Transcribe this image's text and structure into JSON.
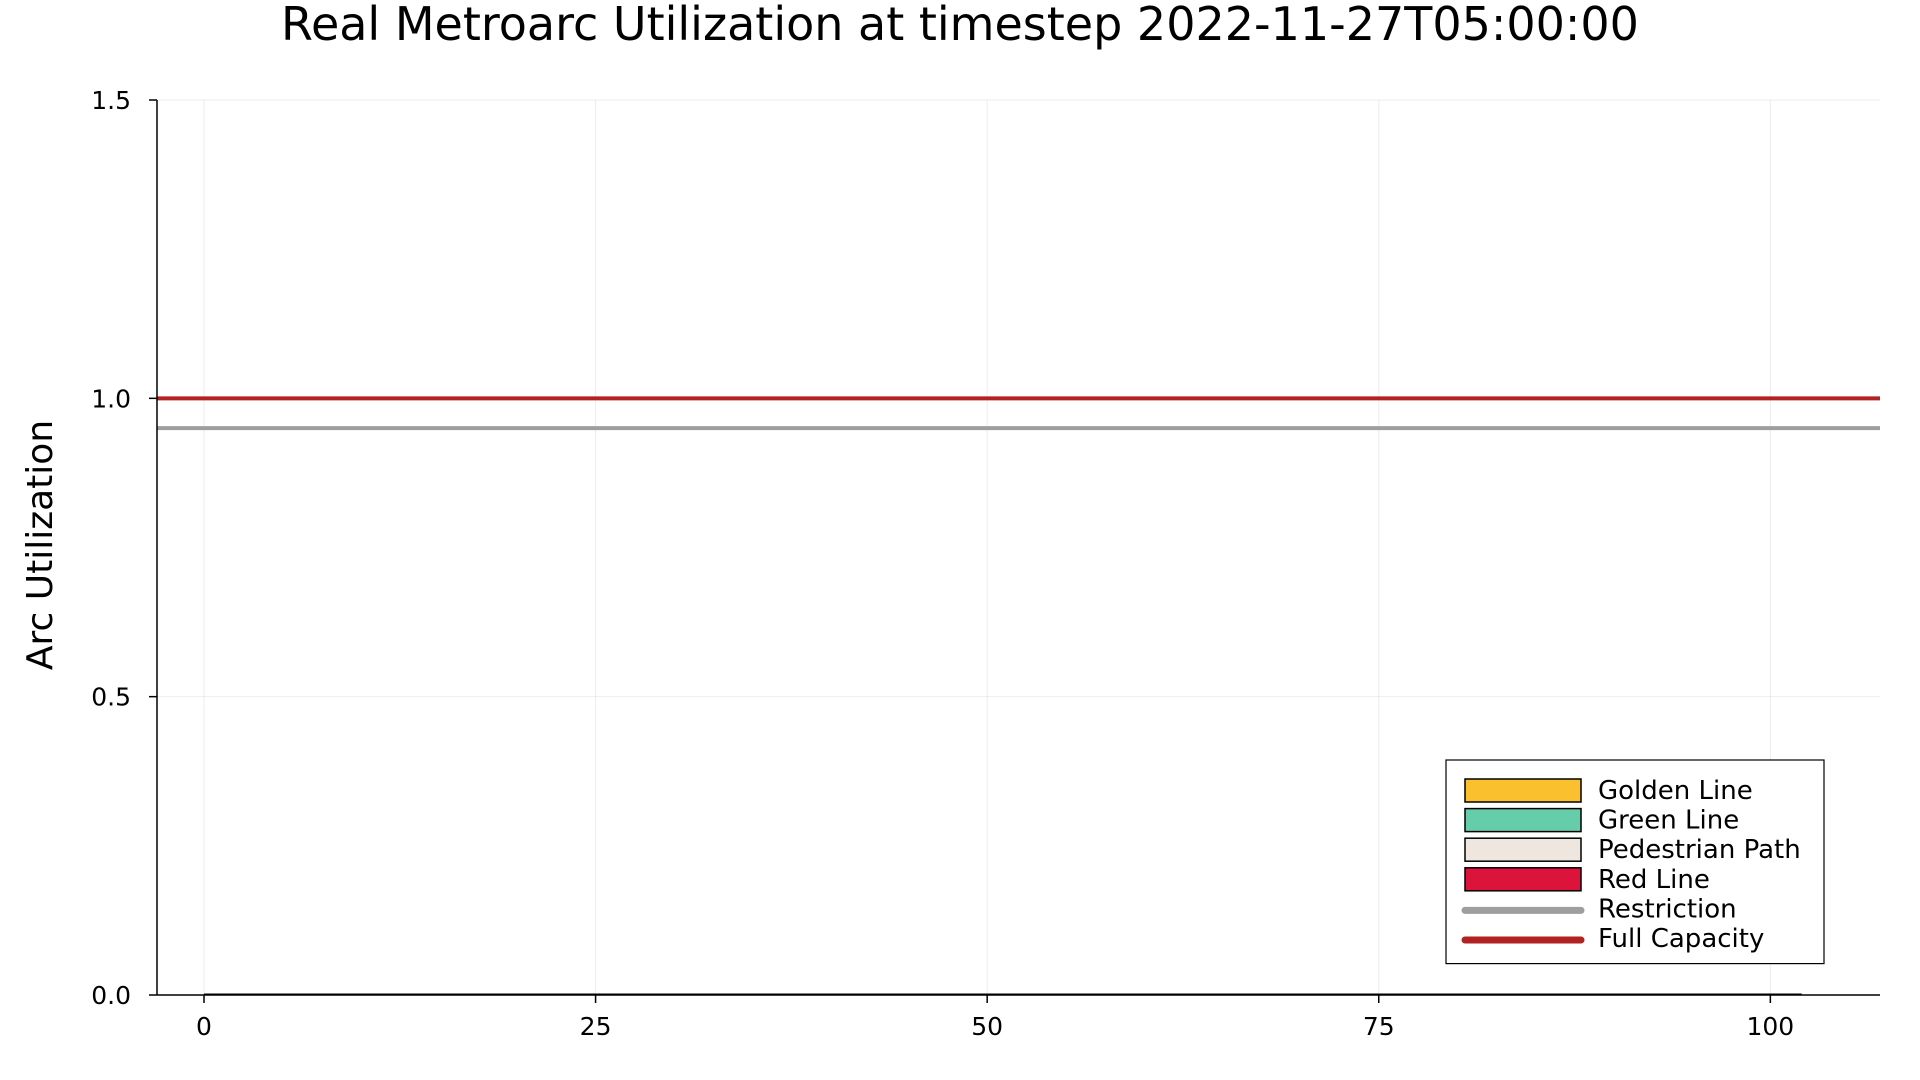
{
  "chart_data": {
    "type": "bar",
    "title": "Real Metroarc Utilization at timestep 2022-11-27T05:00:00",
    "xlabel": "",
    "ylabel": "Arc Utilization",
    "xlim": [
      -3,
      107
    ],
    "ylim": [
      0,
      1.5
    ],
    "x_ticks": [
      0,
      25,
      50,
      75,
      100
    ],
    "y_ticks": [
      0.0,
      0.5,
      1.0,
      1.5
    ],
    "y_tick_labels": [
      "0.0",
      "0.5",
      "1.0",
      "1.5"
    ],
    "grid": true,
    "legend_position": "bottom-right",
    "bar_series": [
      {
        "name": "Golden Line",
        "color": "#fbc02d",
        "values": []
      },
      {
        "name": "Green Line",
        "color": "#66cdaa",
        "values": []
      },
      {
        "name": "Pedestrian Path",
        "color": "#efe6df",
        "values": []
      },
      {
        "name": "Red Line",
        "color": "#dc143c",
        "values": []
      }
    ],
    "reference_lines": [
      {
        "name": "Restriction",
        "y": 0.95,
        "color": "#9e9e9e"
      },
      {
        "name": "Full Capacity",
        "y": 1.0,
        "color": "#b22222"
      }
    ],
    "baseline_x_range": [
      0,
      102
    ]
  }
}
